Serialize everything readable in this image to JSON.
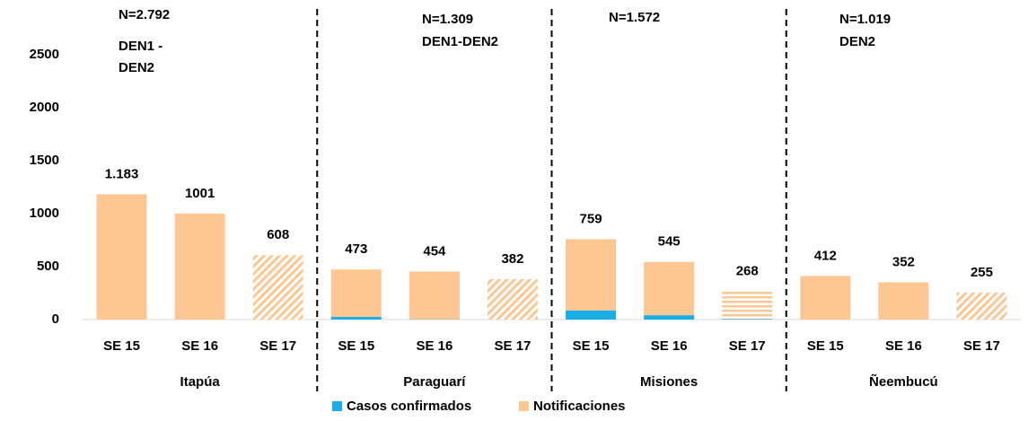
{
  "chart_data": {
    "type": "bar",
    "categories": [
      "SE 15",
      "SE 16",
      "SE 17",
      "SE 15",
      "SE 16",
      "SE 17",
      "SE 15",
      "SE 16",
      "SE 17",
      "SE 15",
      "SE 16",
      "SE 17"
    ],
    "groups": [
      "Itapúa",
      "Paraguarí",
      "Misiones",
      "Ñeembucú"
    ],
    "series": [
      {
        "name": "Notificaciones",
        "color": "#fdc794",
        "values": [
          1183,
          1001,
          608,
          473,
          454,
          382,
          759,
          545,
          268,
          412,
          352,
          255
        ],
        "value_labels": [
          "1.183",
          "1001",
          "608",
          "473",
          "454",
          "382",
          "759",
          "545",
          "268",
          "412",
          "352",
          "255"
        ]
      },
      {
        "name": "Casos confirmados",
        "color": "#1aaee8",
        "values": [
          0,
          0,
          0,
          25,
          2,
          0,
          85,
          40,
          5,
          0,
          0,
          0
        ]
      }
    ],
    "hatch": [
      "none",
      "none",
      "diagonal",
      "none",
      "none",
      "diagonal",
      "none",
      "none",
      "horizontal",
      "none",
      "none",
      "diagonal"
    ],
    "annotations": [
      [
        "N=2.792",
        "DEN1 -",
        "DEN2"
      ],
      [
        "N=1.309",
        "DEN1-DEN2"
      ],
      [
        "N=1.572"
      ],
      [
        "N=1.019",
        "DEN2"
      ]
    ],
    "ylim": [
      0,
      2500
    ],
    "yticks": [
      0,
      500,
      1000,
      1500,
      2000,
      2500
    ]
  }
}
